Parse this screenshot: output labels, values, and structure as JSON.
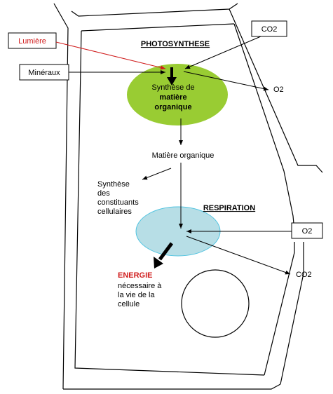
{
  "colors": {
    "chloroplast": "#99cc33",
    "mitochondrion": "#b7dee6",
    "mitochondrion_border": "#4fc3e0",
    "light_arrow": "#d01c1c",
    "energy_text": "#d01c1c"
  },
  "photosynthesis": {
    "heading": "PHOTOSYNTHESE",
    "line1": "Synthèse de",
    "line2": "matière",
    "line3": "organique"
  },
  "inputs": {
    "light": "Lumière",
    "minerals": "Minéraux",
    "co2_in": "CO2"
  },
  "outputs": {
    "o2_out": "O2"
  },
  "organic_matter": "Matière organique",
  "synthesis": {
    "line1": "Synthèse",
    "line2": "des",
    "line3": "constituants",
    "line4": "cellulaires"
  },
  "respiration": {
    "heading": "RESPIRATION",
    "o2_in": "O2",
    "co2_out": "CO2"
  },
  "energy": {
    "title": "ENERGIE",
    "line1": "nécessaire à",
    "line2": "la vie de la",
    "line3": "cellule"
  }
}
